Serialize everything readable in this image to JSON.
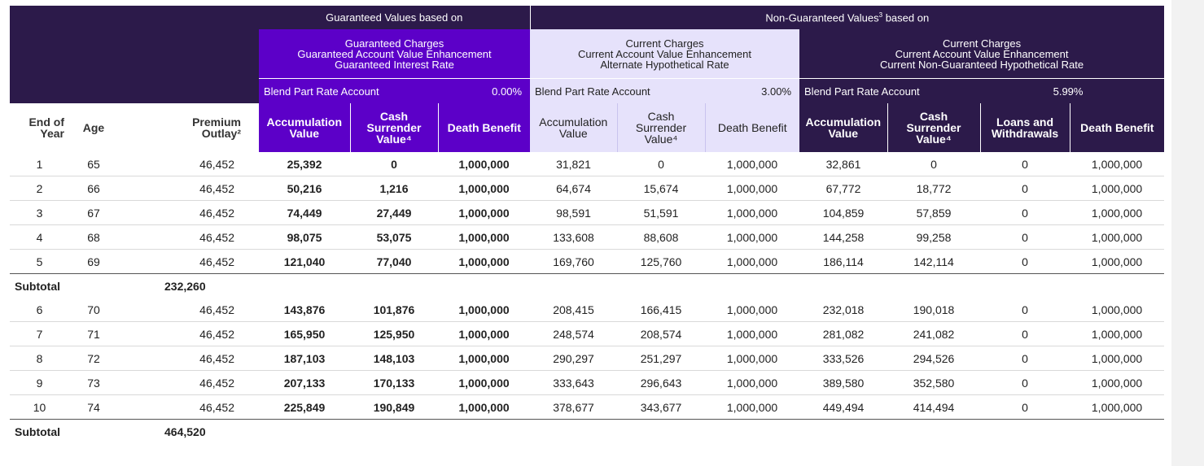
{
  "headers": {
    "guaranteed_group": "Guaranteed Values based on",
    "nonguaranteed_group": "Non-Guaranteed Values",
    "nonguaranteed_sup": "3",
    "nonguaranteed_suffix": " based on",
    "scenario_guaranteed": [
      "Guaranteed Charges",
      "Guaranteed Account Value Enhancement",
      "Guaranteed Interest Rate"
    ],
    "scenario_alt": [
      "Current Charges",
      "Current Account Value Enhancement",
      "Alternate Hypothetical Rate"
    ],
    "scenario_current": [
      "Current Charges",
      "Current Account Value Enhancement",
      "Current Non-Guaranteed Hypothetical Rate"
    ]
  },
  "rates": {
    "label": "Blend Part Rate Account",
    "guaranteed": "0.00%",
    "alternate": "3.00%",
    "current": "5.99%"
  },
  "columns": {
    "end_of_year": [
      "End of",
      "Year"
    ],
    "age": "Age",
    "premium": [
      "Premium",
      "Outlay²"
    ],
    "accumulation": [
      "Accumulation",
      "Value"
    ],
    "cash_surrender": [
      "Cash",
      "Surrender",
      "Value⁴"
    ],
    "death_benefit": "Death Benefit",
    "loans": [
      "Loans and",
      "Withdrawals"
    ]
  },
  "rows": [
    {
      "year": "1",
      "age": "65",
      "premium": "46,452",
      "g_av": "25,392",
      "g_csv": "0",
      "g_db": "1,000,000",
      "a_av": "31,821",
      "a_csv": "0",
      "a_db": "1,000,000",
      "c_av": "32,861",
      "c_csv": "0",
      "c_lw": "0",
      "c_db": "1,000,000"
    },
    {
      "year": "2",
      "age": "66",
      "premium": "46,452",
      "g_av": "50,216",
      "g_csv": "1,216",
      "g_db": "1,000,000",
      "a_av": "64,674",
      "a_csv": "15,674",
      "a_db": "1,000,000",
      "c_av": "67,772",
      "c_csv": "18,772",
      "c_lw": "0",
      "c_db": "1,000,000"
    },
    {
      "year": "3",
      "age": "67",
      "premium": "46,452",
      "g_av": "74,449",
      "g_csv": "27,449",
      "g_db": "1,000,000",
      "a_av": "98,591",
      "a_csv": "51,591",
      "a_db": "1,000,000",
      "c_av": "104,859",
      "c_csv": "57,859",
      "c_lw": "0",
      "c_db": "1,000,000"
    },
    {
      "year": "4",
      "age": "68",
      "premium": "46,452",
      "g_av": "98,075",
      "g_csv": "53,075",
      "g_db": "1,000,000",
      "a_av": "133,608",
      "a_csv": "88,608",
      "a_db": "1,000,000",
      "c_av": "144,258",
      "c_csv": "99,258",
      "c_lw": "0",
      "c_db": "1,000,000"
    },
    {
      "year": "5",
      "age": "69",
      "premium": "46,452",
      "g_av": "121,040",
      "g_csv": "77,040",
      "g_db": "1,000,000",
      "a_av": "169,760",
      "a_csv": "125,760",
      "a_db": "1,000,000",
      "c_av": "186,114",
      "c_csv": "142,114",
      "c_lw": "0",
      "c_db": "1,000,000"
    },
    {
      "year": "6",
      "age": "70",
      "premium": "46,452",
      "g_av": "143,876",
      "g_csv": "101,876",
      "g_db": "1,000,000",
      "a_av": "208,415",
      "a_csv": "166,415",
      "a_db": "1,000,000",
      "c_av": "232,018",
      "c_csv": "190,018",
      "c_lw": "0",
      "c_db": "1,000,000"
    },
    {
      "year": "7",
      "age": "71",
      "premium": "46,452",
      "g_av": "165,950",
      "g_csv": "125,950",
      "g_db": "1,000,000",
      "a_av": "248,574",
      "a_csv": "208,574",
      "a_db": "1,000,000",
      "c_av": "281,082",
      "c_csv": "241,082",
      "c_lw": "0",
      "c_db": "1,000,000"
    },
    {
      "year": "8",
      "age": "72",
      "premium": "46,452",
      "g_av": "187,103",
      "g_csv": "148,103",
      "g_db": "1,000,000",
      "a_av": "290,297",
      "a_csv": "251,297",
      "a_db": "1,000,000",
      "c_av": "333,526",
      "c_csv": "294,526",
      "c_lw": "0",
      "c_db": "1,000,000"
    },
    {
      "year": "9",
      "age": "73",
      "premium": "46,452",
      "g_av": "207,133",
      "g_csv": "170,133",
      "g_db": "1,000,000",
      "a_av": "333,643",
      "a_csv": "296,643",
      "a_db": "1,000,000",
      "c_av": "389,580",
      "c_csv": "352,580",
      "c_lw": "0",
      "c_db": "1,000,000"
    },
    {
      "year": "10",
      "age": "74",
      "premium": "46,452",
      "g_av": "225,849",
      "g_csv": "190,849",
      "g_db": "1,000,000",
      "a_av": "378,677",
      "a_csv": "343,677",
      "a_db": "1,000,000",
      "c_av": "449,494",
      "c_csv": "414,494",
      "c_lw": "0",
      "c_db": "1,000,000"
    }
  ],
  "subtotals": [
    {
      "label": "Subtotal",
      "value": "232,260"
    },
    {
      "label": "Subtotal",
      "value": "464,520"
    }
  ]
}
